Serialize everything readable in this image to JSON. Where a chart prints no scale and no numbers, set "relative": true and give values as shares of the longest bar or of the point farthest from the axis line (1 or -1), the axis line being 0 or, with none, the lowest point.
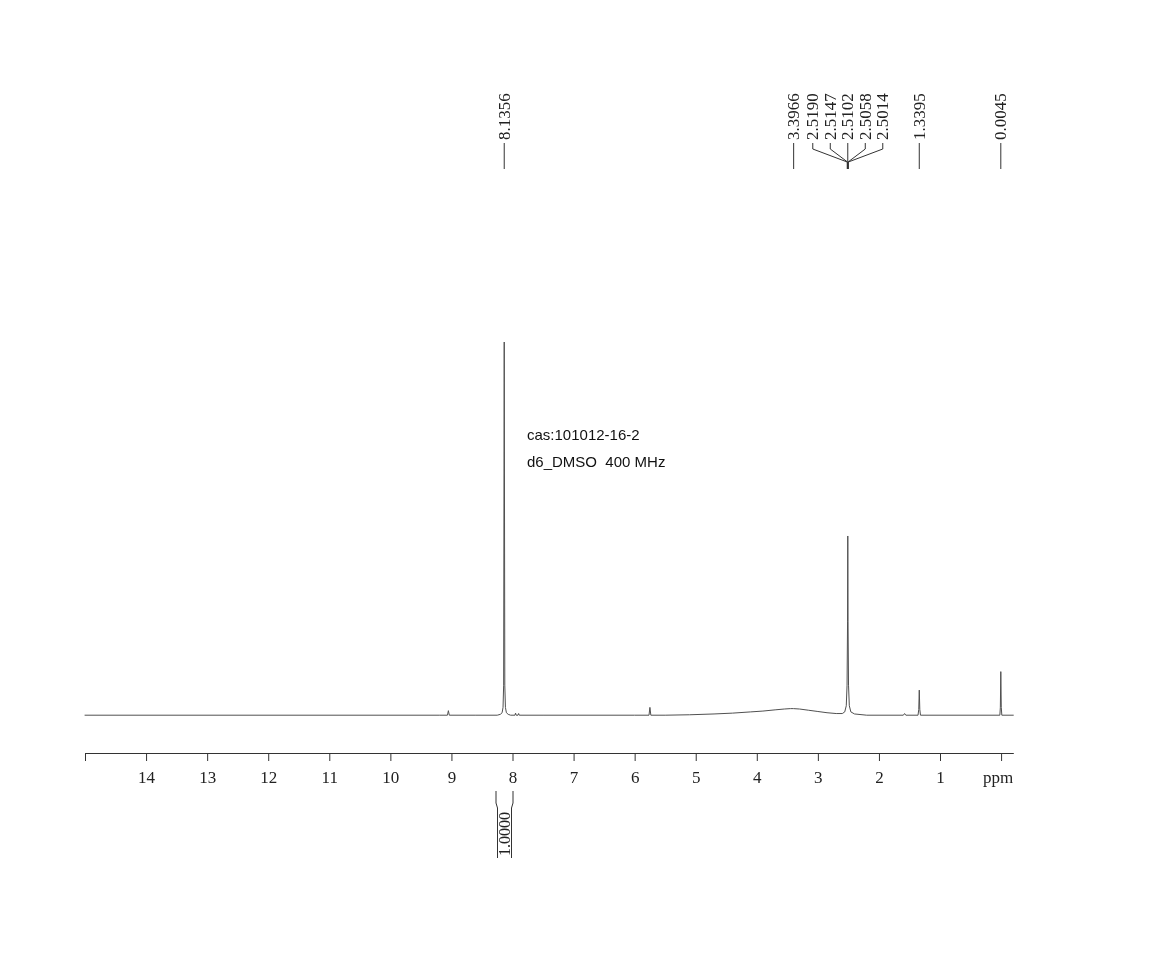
{
  "chart_data": {
    "type": "line",
    "xlim": [
      15,
      -0.2
    ],
    "xticks": [
      {
        "value": 15,
        "label": null
      },
      14,
      13,
      12,
      11,
      10,
      9,
      8,
      7,
      6,
      5,
      4,
      3,
      2,
      1,
      {
        "value": 0,
        "label": null
      }
    ],
    "xlabel": "ppm",
    "relative": true,
    "series": [
      {
        "color": "#505050",
        "x": [
          15,
          9.2,
          9.065,
          9.05,
          9.035,
          8.6,
          8.25,
          8.2,
          8.17,
          8.155,
          8.145,
          8.1356,
          8.126,
          8.116,
          8.1,
          8.07,
          8.03,
          7.96,
          7.95,
          7.94,
          7.91,
          7.9,
          7.89,
          7.5,
          6.0,
          5.765,
          5.75,
          5.735,
          5.5,
          5.1,
          4.7,
          4.4,
          4.1,
          3.9,
          3.7,
          3.55,
          3.45,
          3.4,
          3.3,
          3.15,
          3.0,
          2.85,
          2.7,
          2.6,
          2.56,
          2.535,
          2.522,
          2.514,
          2.51,
          2.506,
          2.498,
          2.485,
          2.46,
          2.4,
          2.2,
          1.6,
          1.58,
          1.56,
          1.36,
          1.348,
          1.3395,
          1.331,
          1.32,
          1.0,
          0.02,
          0.012,
          0.0045,
          -0.003,
          -0.012,
          -0.2
        ],
        "values": [
          0.092,
          0.092,
          0.092,
          0.103,
          0.092,
          0.092,
          0.092,
          0.094,
          0.098,
          0.111,
          0.165,
          1,
          0.165,
          0.111,
          0.098,
          0.094,
          0.092,
          0.092,
          0.097,
          0.092,
          0.092,
          0.096,
          0.092,
          0.092,
          0.092,
          0.092,
          0.111,
          0.092,
          0.092,
          0.093,
          0.095,
          0.097,
          0.1,
          0.102,
          0.105,
          0.107,
          0.108,
          0.108,
          0.107,
          0.104,
          0.101,
          0.098,
          0.096,
          0.096,
          0.1,
          0.115,
          0.165,
          0.319,
          0.528,
          0.319,
          0.165,
          0.115,
          0.1,
          0.095,
          0.092,
          0.092,
          0.096,
          0.092,
          0.092,
          0.106,
          0.153,
          0.106,
          0.092,
          0.092,
          0.092,
          0.111,
          0.198,
          0.111,
          0.092,
          0.092
        ]
      }
    ],
    "annotations": [
      {
        "text": "8.1356",
        "x": 8.1356
      },
      {
        "text": "3.3966",
        "x": 3.3966
      },
      {
        "text": "2.5190",
        "x": 2.519
      },
      {
        "text": "2.5147",
        "x": 2.5147
      },
      {
        "text": "2.5102",
        "x": 2.5102
      },
      {
        "text": "2.5058",
        "x": 2.5058
      },
      {
        "text": "2.5014",
        "x": 2.5014
      },
      {
        "text": "1.3395",
        "x": 1.3395
      },
      {
        "text": "0.0045",
        "x": 0.0045
      },
      "cas:101012-16-2",
      "d6_DMSO  400 MHz",
      "1.0000"
    ]
  }
}
